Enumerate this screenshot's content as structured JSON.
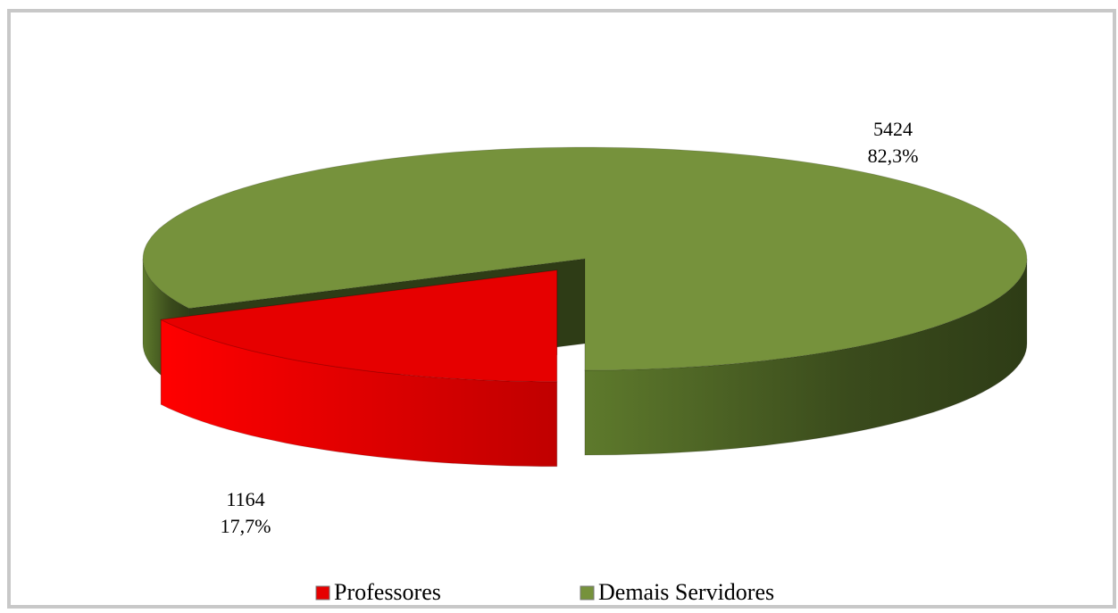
{
  "chart_data": {
    "type": "pie3d",
    "categories": [
      "Professores",
      "Demais Servidores"
    ],
    "values": [
      1164,
      5424
    ],
    "percents": [
      17.7,
      82.3
    ],
    "percent_labels": [
      "17,7%",
      "82,3%"
    ],
    "colors": [
      "#e60000",
      "#77933c"
    ],
    "exploded": [
      true,
      false
    ],
    "legend": "bottom"
  }
}
